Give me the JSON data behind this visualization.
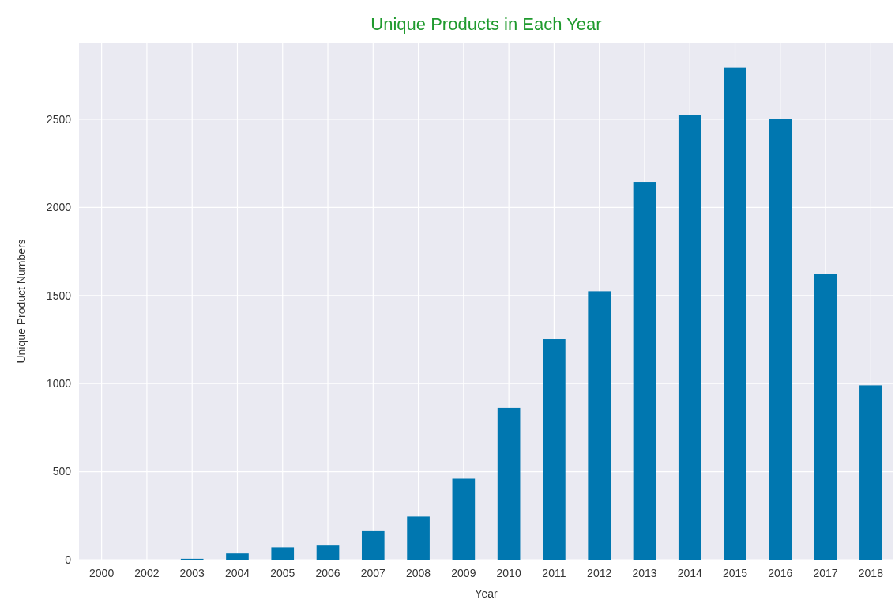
{
  "chart_data": {
    "type": "bar",
    "title": "Unique Products in Each Year",
    "xlabel": "Year",
    "ylabel": "Unique Product Numbers",
    "categories": [
      "2000",
      "2002",
      "2003",
      "2004",
      "2005",
      "2006",
      "2007",
      "2008",
      "2009",
      "2010",
      "2011",
      "2012",
      "2013",
      "2014",
      "2015",
      "2016",
      "2017",
      "2018"
    ],
    "values": [
      null,
      null,
      5,
      35,
      70,
      80,
      162,
      245,
      460,
      862,
      1252,
      1524,
      2145,
      2526,
      2793,
      2500,
      1624,
      990
    ],
    "color": "#0077b0",
    "ylim": [
      0,
      2935
    ],
    "yticks": [
      0,
      500,
      1000,
      1500,
      2000,
      2500
    ],
    "grid": true
  }
}
